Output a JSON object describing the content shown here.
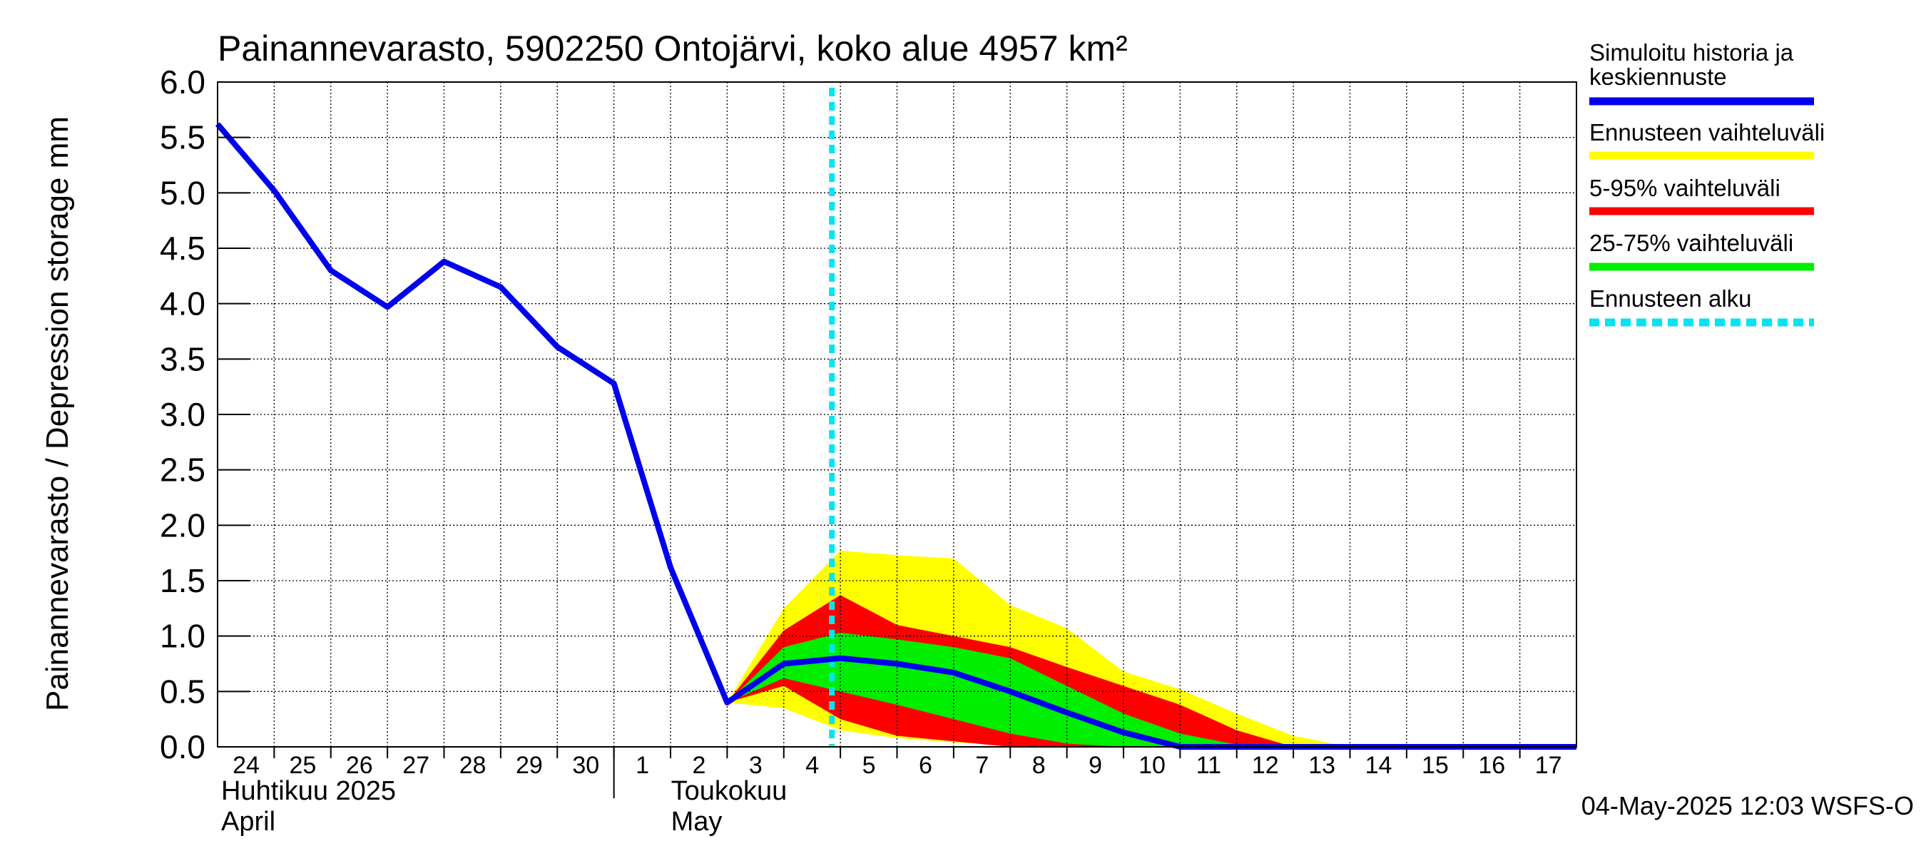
{
  "chart_data": {
    "type": "area",
    "title": "Painannevarasto, 5902250 Ontojärvi, koko alue 4957 km²",
    "ylabel": "Painannevarasto / Depression storage    mm",
    "ylim": [
      0,
      6
    ],
    "yticks": [
      "0.0",
      "0.5",
      "1.0",
      "1.5",
      "2.0",
      "2.5",
      "3.0",
      "3.5",
      "4.0",
      "4.5",
      "5.0",
      "5.5",
      "6.0"
    ],
    "xlim": [
      "2025-04-24",
      "2025-05-18"
    ],
    "x_tick_labels": [
      "24",
      "25",
      "26",
      "27",
      "28",
      "29",
      "30",
      "1",
      "2",
      "3",
      "4",
      "5",
      "6",
      "7",
      "8",
      "9",
      "10",
      "11",
      "12",
      "13",
      "14",
      "15",
      "16",
      "17"
    ],
    "month_labels": [
      {
        "fi": "Huhtikuu  2025",
        "en": "April"
      },
      {
        "fi": "Toukokuu",
        "en": "May"
      }
    ],
    "grid": true,
    "legend_position": "right",
    "forecast_start": "2025-05-04",
    "series": [
      {
        "name": "Simuloitu historia ja keskiennuste",
        "color": "#0000ee",
        "x": [
          "2025-04-24",
          "2025-04-25",
          "2025-04-26",
          "2025-04-27",
          "2025-04-28",
          "2025-04-29",
          "2025-04-30",
          "2025-05-01",
          "2025-05-02",
          "2025-05-03",
          "2025-05-04",
          "2025-05-05",
          "2025-05-06",
          "2025-05-07",
          "2025-05-08",
          "2025-05-09",
          "2025-05-10",
          "2025-05-11",
          "2025-05-12",
          "2025-05-13",
          "2025-05-14",
          "2025-05-15",
          "2025-05-16",
          "2025-05-17",
          "2025-05-18"
        ],
        "values": [
          5.62,
          5.02,
          4.3,
          3.97,
          4.38,
          4.15,
          3.61,
          3.28,
          1.62,
          0.4,
          0.75,
          0.8,
          0.75,
          0.67,
          0.5,
          0.31,
          0.13,
          0.0,
          0.0,
          0.0,
          0.0,
          0.0,
          0.0,
          0.0,
          0.0
        ]
      }
    ],
    "bands": [
      {
        "name": "Ennusteen vaihteluväli",
        "color": "#ffff00",
        "x": [
          "2025-05-03",
          "2025-05-04",
          "2025-05-05",
          "2025-05-06",
          "2025-05-07",
          "2025-05-08",
          "2025-05-09",
          "2025-05-10",
          "2025-05-11",
          "2025-05-12",
          "2025-05-13",
          "2025-05-14",
          "2025-05-15",
          "2025-05-16",
          "2025-05-17",
          "2025-05-18"
        ],
        "low": [
          0.4,
          0.35,
          0.15,
          0.08,
          0.04,
          0.02,
          0.0,
          0.0,
          0.0,
          0.0,
          0.0,
          0.0,
          0.0,
          0.0,
          0.0,
          0.0
        ],
        "high": [
          0.4,
          1.25,
          1.77,
          1.73,
          1.7,
          1.28,
          1.07,
          0.68,
          0.52,
          0.3,
          0.1,
          0.0,
          0.0,
          0.0,
          0.0,
          0.0
        ]
      },
      {
        "name": "5-95% vaihteluväli",
        "color": "#ff0000",
        "x": [
          "2025-05-03",
          "2025-05-04",
          "2025-05-05",
          "2025-05-06",
          "2025-05-07",
          "2025-05-08",
          "2025-05-09",
          "2025-05-10",
          "2025-05-11",
          "2025-05-12",
          "2025-05-13",
          "2025-05-14",
          "2025-05-15",
          "2025-05-16",
          "2025-05-17",
          "2025-05-18"
        ],
        "low": [
          0.4,
          0.55,
          0.25,
          0.1,
          0.05,
          0.0,
          0.0,
          0.0,
          0.0,
          0.0,
          0.0,
          0.0,
          0.0,
          0.0,
          0.0,
          0.0
        ],
        "high": [
          0.4,
          1.05,
          1.37,
          1.1,
          1.0,
          0.9,
          0.72,
          0.55,
          0.38,
          0.15,
          0.0,
          0.0,
          0.0,
          0.0,
          0.0,
          0.0
        ]
      },
      {
        "name": "25-75% vaihteluväli",
        "color": "#00ee00",
        "x": [
          "2025-05-03",
          "2025-05-04",
          "2025-05-05",
          "2025-05-06",
          "2025-05-07",
          "2025-05-08",
          "2025-05-09",
          "2025-05-10",
          "2025-05-11",
          "2025-05-12",
          "2025-05-13",
          "2025-05-14",
          "2025-05-15",
          "2025-05-16",
          "2025-05-17",
          "2025-05-18"
        ],
        "low": [
          0.4,
          0.62,
          0.5,
          0.38,
          0.25,
          0.12,
          0.03,
          0.0,
          0.0,
          0.0,
          0.0,
          0.0,
          0.0,
          0.0,
          0.0,
          0.0
        ],
        "high": [
          0.4,
          0.9,
          1.03,
          0.97,
          0.9,
          0.8,
          0.55,
          0.3,
          0.12,
          0.02,
          0.0,
          0.0,
          0.0,
          0.0,
          0.0,
          0.0
        ]
      }
    ],
    "legend": [
      {
        "label": "Simuloitu historia ja keskiennuste",
        "color": "#0000ee",
        "style": "solid"
      },
      {
        "label": "Ennusteen vaihteluväli",
        "color": "#ffff00",
        "style": "solid"
      },
      {
        "label": "5-95% vaihteluväli",
        "color": "#ff0000",
        "style": "solid"
      },
      {
        "label": "25-75% vaihteluväli",
        "color": "#00ee00",
        "style": "solid"
      },
      {
        "label": "Ennusteen alku",
        "color": "#00e5ee",
        "style": "dashed"
      }
    ],
    "footer": "04-May-2025 12:03 WSFS-O"
  }
}
